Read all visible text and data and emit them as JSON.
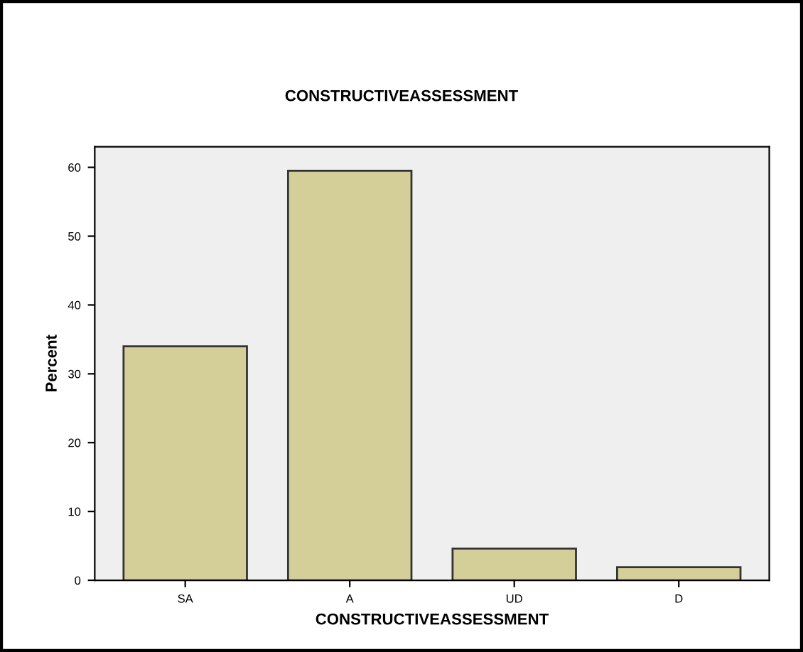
{
  "chart_data": {
    "type": "bar",
    "title": "CONSTRUCTIVEASSESSMENT",
    "xlabel": "CONSTRUCTIVEASSESSMENT",
    "ylabel": "Percent",
    "categories": [
      "SA",
      "A",
      "UD",
      "D"
    ],
    "values": [
      34.0,
      59.5,
      4.6,
      1.9
    ],
    "color": "#d4cf98",
    "ylim": [
      0,
      63
    ],
    "yticks": [
      0,
      10,
      20,
      30,
      40,
      50,
      60
    ],
    "grid": false
  }
}
